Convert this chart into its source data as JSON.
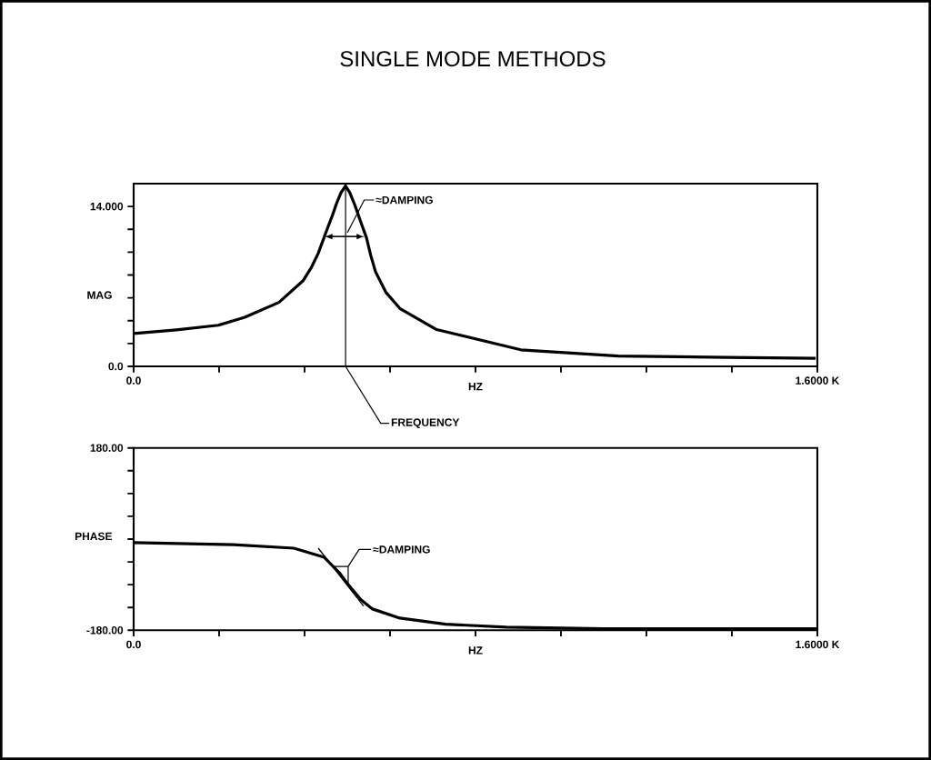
{
  "chart_data": [
    {
      "type": "line",
      "title": "SINGLE MODE METHODS",
      "xlabel": "HZ",
      "ylabel": "MAG",
      "color": "#000000",
      "x": [
        0,
        100,
        198,
        260,
        340,
        396,
        415,
        432,
        453,
        465,
        474,
        485,
        496,
        506,
        517,
        530,
        545,
        555,
        566,
        590,
        623,
        709,
        906,
        1134,
        1389,
        1596
      ],
      "values": [
        2.87,
        3.2,
        3.6,
        4.3,
        5.6,
        7.48,
        8.6,
        9.9,
        12.04,
        13.2,
        14.19,
        15.2,
        15.8,
        15.2,
        14.19,
        12.8,
        11.24,
        9.7,
        8.29,
        6.5,
        5.07,
        3.22,
        1.45,
        0.91,
        0.78,
        0.7
      ],
      "xlim": [
        0,
        1600
      ],
      "xticks": [
        {
          "value": 0,
          "label": "0.0"
        },
        {
          "value": 200,
          "label": null
        },
        {
          "value": 400,
          "label": null
        },
        {
          "value": 600,
          "label": null
        },
        {
          "value": 800,
          "label": null
        },
        {
          "value": 1000,
          "label": null
        },
        {
          "value": 1200,
          "label": null
        },
        {
          "value": 1400,
          "label": null
        },
        {
          "value": 1600,
          "label": "1.6000 K"
        }
      ],
      "ylim": [
        0,
        16
      ],
      "yticks": [
        {
          "value": 0,
          "label": "0.0"
        },
        {
          "value": 2,
          "label": null
        },
        {
          "value": 4,
          "label": null
        },
        {
          "value": 6,
          "label": null
        },
        {
          "value": 8,
          "label": null
        },
        {
          "value": 10,
          "label": null
        },
        {
          "value": 12,
          "label": null
        },
        {
          "value": 14,
          "label": "14.000"
        }
      ],
      "ref_lines": [
        {
          "axis": "x",
          "value": 496,
          "label": "FREQUENCY"
        }
      ],
      "annotations": [
        {
          "text": "≈DAMPING",
          "x": 500,
          "y": 11.7
        }
      ]
    },
    {
      "type": "line",
      "xlabel": "HZ",
      "ylabel": "PHASE",
      "series": [
        {
          "color": "#000000",
          "x": [
            0,
            233,
            375,
            446,
            481,
            502,
            532,
            559,
            623,
            730,
            872,
            1100,
            1400,
            1600
          ],
          "values": [
            -7,
            -11,
            -18,
            -36,
            -66,
            -90,
            -120,
            -138,
            -156,
            -168,
            -174,
            -177,
            -177,
            -177
          ]
        },
        {
          "type": "line",
          "color": "#000000",
          "x": [
            432,
            538
          ],
          "values": [
            -18,
            -132
          ]
        }
      ],
      "xlim": [
        0,
        1600
      ],
      "xticks": [
        {
          "value": 0,
          "label": "0.0"
        },
        {
          "value": 200,
          "label": null
        },
        {
          "value": 400,
          "label": null
        },
        {
          "value": 600,
          "label": null
        },
        {
          "value": 800,
          "label": null
        },
        {
          "value": 1000,
          "label": null
        },
        {
          "value": 1200,
          "label": null
        },
        {
          "value": 1400,
          "label": null
        },
        {
          "value": 1600,
          "label": "1.6000 K"
        }
      ],
      "ylim": [
        -180,
        180
      ],
      "yticks": [
        {
          "value": -180,
          "label": "-180.00"
        },
        {
          "value": -135,
          "label": null
        },
        {
          "value": -90,
          "label": null
        },
        {
          "value": -45,
          "label": null
        },
        {
          "value": 0,
          "label": null
        },
        {
          "value": 45,
          "label": null
        },
        {
          "value": 90,
          "label": null
        },
        {
          "value": 135,
          "label": null
        },
        {
          "value": 180,
          "label": "180.00"
        }
      ],
      "annotations": [
        {
          "text": "≈DAMPING",
          "x": 502,
          "y": -90
        }
      ]
    }
  ]
}
